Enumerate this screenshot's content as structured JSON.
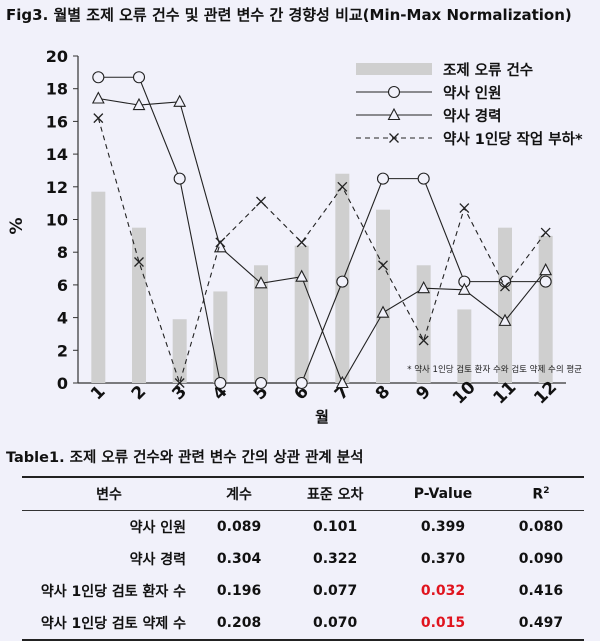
{
  "figure": {
    "title": "Fig3. 월별 조제 오류 건수 및 관련 변수 간 경향성 비교(Min-Max Normalization)",
    "note": "* 약사 1인당 검토 환자 수와 검토 약제 수의 평균"
  },
  "chart_data": {
    "type": "bar+line",
    "title": "Fig3. 월별 조제 오류 건수 및 관련 변수 간 경향성 비교(Min-Max Normalization)",
    "xlabel": "월",
    "ylabel": "%",
    "categories": [
      "1",
      "2",
      "3",
      "4",
      "5",
      "6",
      "7",
      "8",
      "9",
      "10",
      "11",
      "12"
    ],
    "ylim": [
      0,
      20
    ],
    "yticks": [
      0,
      2,
      4,
      6,
      8,
      10,
      12,
      14,
      16,
      18,
      20
    ],
    "grid": false,
    "legend_position": "top-right",
    "series": [
      {
        "name": "조제 오류 건수",
        "kind": "bar",
        "color": "#cfcfcf",
        "values": [
          11.7,
          9.5,
          3.9,
          5.6,
          7.2,
          8.4,
          12.8,
          10.6,
          7.2,
          4.5,
          9.5,
          9.0
        ]
      },
      {
        "name": "약사 인원",
        "kind": "line",
        "marker": "circle",
        "dash": "solid",
        "values": [
          18.7,
          18.7,
          12.5,
          0.0,
          0.0,
          0.0,
          6.2,
          12.5,
          12.5,
          6.2,
          6.2,
          6.2
        ]
      },
      {
        "name": "약사 경력",
        "kind": "line",
        "marker": "triangle",
        "dash": "solid",
        "values": [
          17.4,
          17.0,
          17.2,
          8.3,
          6.1,
          6.5,
          0.0,
          4.3,
          5.8,
          5.7,
          3.8,
          6.9
        ]
      },
      {
        "name": "약사 1인당 작업 부하*",
        "kind": "line",
        "marker": "x",
        "dash": "dashed",
        "values": [
          16.2,
          7.4,
          0.0,
          8.6,
          11.1,
          8.6,
          12.0,
          7.2,
          2.6,
          10.7,
          5.9,
          9.2
        ]
      }
    ]
  },
  "table": {
    "title": "Table1. 조제 오류 건수와 관련 변수 간의 상관 관계 분석",
    "headers": [
      "변수",
      "계수",
      "표준 오차",
      "P-Value",
      "R"
    ],
    "r_sup": "2",
    "rows": [
      {
        "var": "약사 인원",
        "coef": "0.089",
        "se": "0.101",
        "p": "0.399",
        "r2": "0.080",
        "p_highlight": false
      },
      {
        "var": "약사 경력",
        "coef": "0.304",
        "se": "0.322",
        "p": "0.370",
        "r2": "0.090",
        "p_highlight": false
      },
      {
        "var": "약사 1인당 검토 환자 수",
        "coef": "0.196",
        "se": "0.077",
        "p": "0.032",
        "r2": "0.416",
        "p_highlight": true
      },
      {
        "var": "약사 1인당 검토 약제 수",
        "coef": "0.208",
        "se": "0.070",
        "p": "0.015",
        "r2": "0.497",
        "p_highlight": true
      }
    ],
    "highlight_color": "#e0141e"
  }
}
